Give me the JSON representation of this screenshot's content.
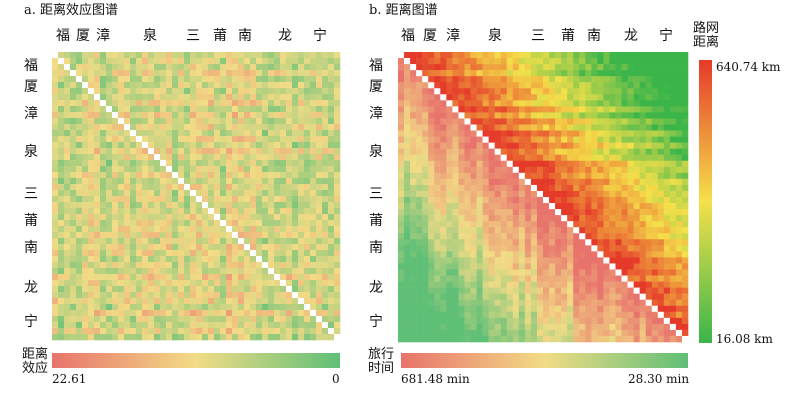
{
  "panels": [
    {
      "title": "a. 距离效应图谱",
      "city_labels": [
        "福",
        "厦",
        "漳",
        "泉",
        "三",
        "莆",
        "南",
        "龙",
        "宁"
      ],
      "legend_caption": [
        "距离",
        "效应"
      ],
      "legend_min": "22.61",
      "legend_max": "0"
    },
    {
      "title": "b. 距离图谱",
      "city_labels": [
        "福",
        "厦",
        "漳",
        "泉",
        "三",
        "莆",
        "南",
        "龙",
        "宁"
      ],
      "legend_caption": [
        "旅行",
        "时间"
      ],
      "legend_min": "681.48 min",
      "legend_max": "28.30 min",
      "vlegend_caption": [
        "路网",
        "距离"
      ],
      "vlegend_max": "640.74 km",
      "vlegend_min": "16.08  km"
    }
  ],
  "colors": {
    "low_red": "#e8736c",
    "mid_yellow": "#f2dc86",
    "high_green": "#5fbf77",
    "strong_red": "#e53a2a",
    "strong_green": "#3bb54a",
    "diagonal": "#ffffff"
  },
  "chart_data": [
    {
      "type": "heatmap",
      "title": "a. 距离效应图谱",
      "rows": [
        "福",
        "厦",
        "漳",
        "泉",
        "三",
        "莆",
        "南",
        "龙",
        "宁"
      ],
      "cols": [
        "福",
        "厦",
        "漳",
        "泉",
        "三",
        "莆",
        "南",
        "龙",
        "宁"
      ],
      "colorbar": {
        "label": "距离效应",
        "min": 22.61,
        "max": 0,
        "colors": [
          "#e8736c",
          "#f2dc86",
          "#5fbf77"
        ]
      }
    },
    {
      "type": "heatmap",
      "title": "b. 距离图谱",
      "rows": [
        "福",
        "厦",
        "漳",
        "泉",
        "三",
        "莆",
        "南",
        "龙",
        "宁"
      ],
      "cols": [
        "福",
        "厦",
        "漳",
        "泉",
        "三",
        "莆",
        "南",
        "龙",
        "宁"
      ],
      "upper_triangle": {
        "label": "路网距离",
        "min": 16.08,
        "max": 640.74,
        "unit": "km"
      },
      "lower_triangle": {
        "label": "旅行时间",
        "min": 28.3,
        "max": 681.48,
        "unit": "min"
      }
    }
  ]
}
